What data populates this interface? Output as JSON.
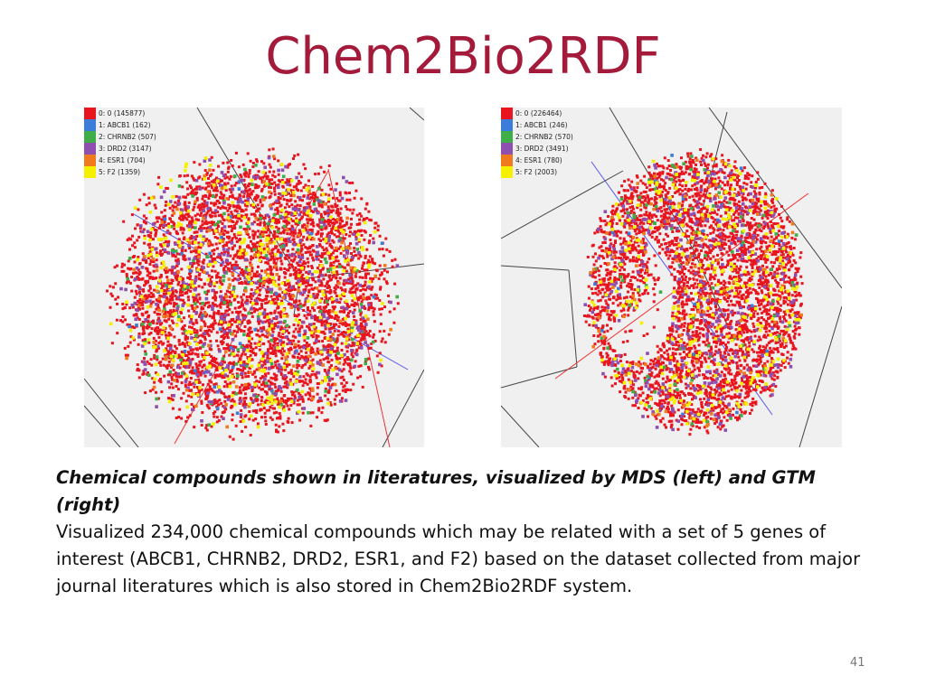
{
  "slide": {
    "title": "Chem2Bio2RDF",
    "caption_title": "Chemical compounds shown in literatures, visualized by MDS (left) and GTM (right)",
    "caption_body": "Visualized 234,000 chemical compounds which may be related with a set of 5 genes of interest (ABCB1, CHRNB2, DRD2, ESR1, and F2) based on the dataset collected from major journal literatures which is also stored in Chem2Bio2RDF system.",
    "page_number": "41"
  },
  "chart_data": [
    {
      "type": "scatter",
      "method": "MDS",
      "title": "",
      "xlabel": "",
      "ylabel": "",
      "grid": false,
      "legend_position": "top-left",
      "shape": "disc",
      "series": [
        {
          "name": "0: 0 (145877)",
          "label": "0",
          "count": 145877,
          "color": "#e8141e"
        },
        {
          "name": "1: ABCB1 (162)",
          "label": "ABCB1",
          "count": 162,
          "color": "#3b7dd8"
        },
        {
          "name": "2: CHRNB2 (507)",
          "label": "CHRNB2",
          "count": 507,
          "color": "#3fae49"
        },
        {
          "name": "3: DRD2 (3147)",
          "label": "DRD2",
          "count": 3147,
          "color": "#8e4fb0"
        },
        {
          "name": "4: ESR1 (704)",
          "label": "ESR1",
          "count": 704,
          "color": "#f07a1e"
        },
        {
          "name": "5: F2 (1359)",
          "label": "F2",
          "count": 1359,
          "color": "#f4f000"
        }
      ]
    },
    {
      "type": "scatter",
      "method": "GTM",
      "title": "",
      "xlabel": "",
      "ylabel": "",
      "grid": false,
      "legend_position": "top-left",
      "shape": "crescent",
      "series": [
        {
          "name": "0: 0 (226464)",
          "label": "0",
          "count": 226464,
          "color": "#e8141e"
        },
        {
          "name": "1: ABCB1 (246)",
          "label": "ABCB1",
          "count": 246,
          "color": "#3b7dd8"
        },
        {
          "name": "2: CHRNB2 (570)",
          "label": "CHRNB2",
          "count": 570,
          "color": "#3fae49"
        },
        {
          "name": "3: DRD2 (3491)",
          "label": "DRD2",
          "count": 3491,
          "color": "#8e4fb0"
        },
        {
          "name": "4: ESR1 (780)",
          "label": "ESR1",
          "count": 780,
          "color": "#f07a1e"
        },
        {
          "name": "5: F2 (2003)",
          "label": "F2",
          "count": 2003,
          "color": "#f4f000"
        }
      ]
    }
  ]
}
